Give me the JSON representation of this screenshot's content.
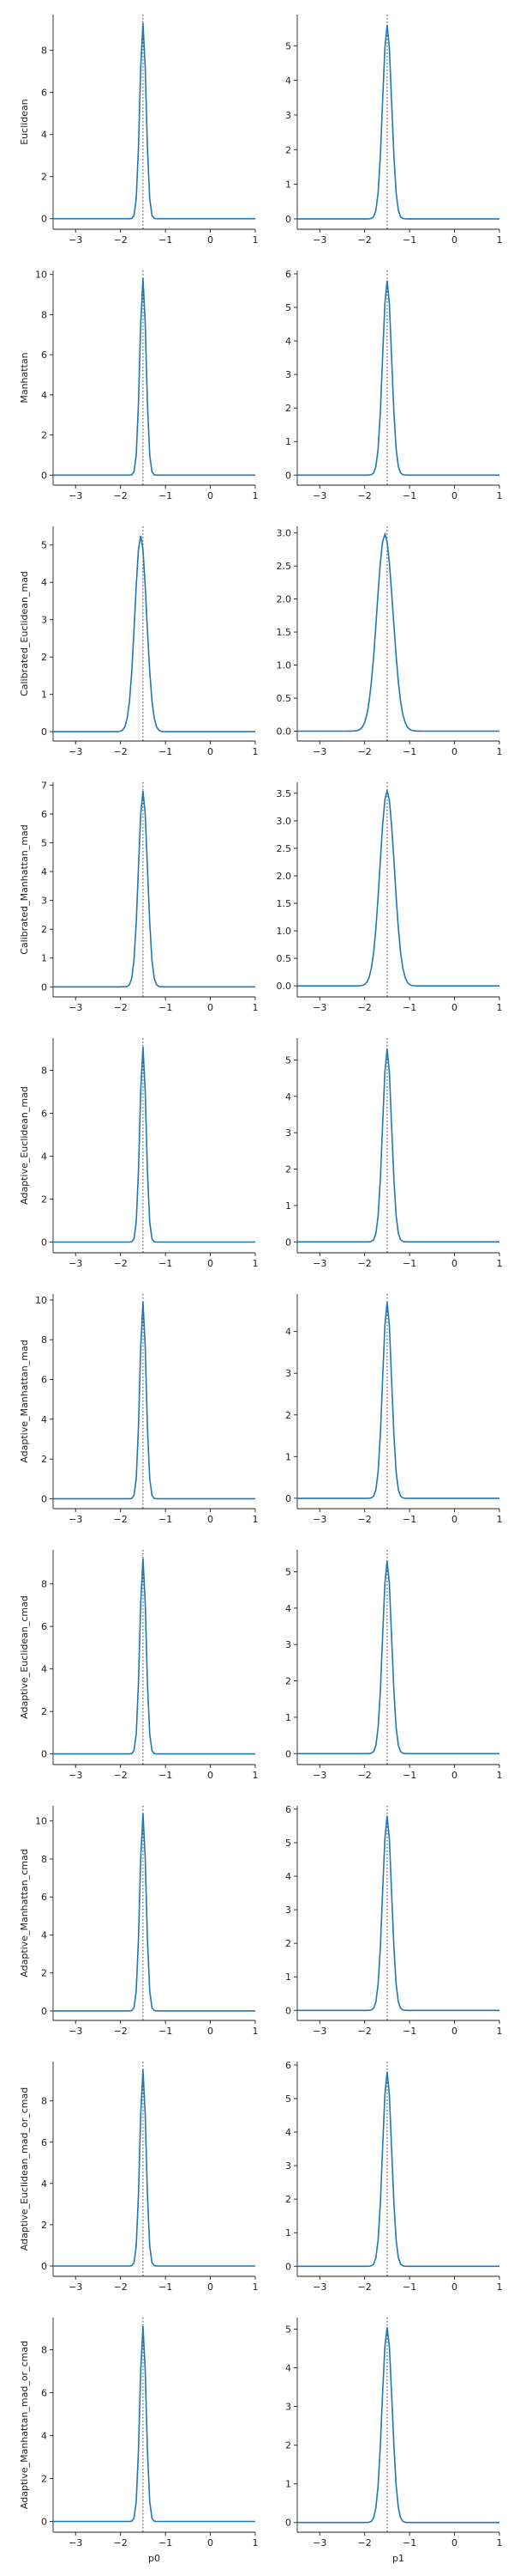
{
  "chart_data": {
    "type": "line",
    "layout": "grid",
    "rows": 10,
    "cols": 2,
    "column_xlabels": [
      "p0",
      "p1"
    ],
    "row_ylabels": [
      "Euclidean",
      "Manhattan",
      "Calibrated_Euclidean_mad",
      "Calibrated_Manhattan_mad",
      "Adaptive_Euclidean_mad",
      "Adaptive_Manhattan_mad",
      "Adaptive_Euclidean_cmad",
      "Adaptive_Manhattan_cmad",
      "Adaptive_Euclidean_mad_or_cmad",
      "Adaptive_Manhattan_mad_or_cmad"
    ],
    "xlim": [
      -3.5,
      1.0
    ],
    "xticks": [
      -3,
      -2,
      -1,
      0,
      1
    ],
    "reference_line_x": -1.5,
    "reference_line_style": "dotted",
    "line_color": "#1f77b4",
    "grid": false,
    "panels": [
      {
        "row": 0,
        "col": 0,
        "ylim": [
          -0.5,
          9.7
        ],
        "yticks": [
          0,
          2,
          4,
          6,
          8
        ],
        "peak_x": -1.5,
        "peak_y": 9.3,
        "width": 0.07
      },
      {
        "row": 0,
        "col": 1,
        "ylim": [
          -0.3,
          5.9
        ],
        "yticks": [
          0,
          1,
          2,
          3,
          4,
          5
        ],
        "peak_x": -1.5,
        "peak_y": 5.6,
        "width": 0.1
      },
      {
        "row": 1,
        "col": 0,
        "ylim": [
          -0.5,
          10.2
        ],
        "yticks": [
          0,
          2,
          4,
          6,
          8,
          10
        ],
        "peak_x": -1.5,
        "peak_y": 9.8,
        "width": 0.07
      },
      {
        "row": 1,
        "col": 1,
        "ylim": [
          -0.3,
          6.1
        ],
        "yticks": [
          0,
          1,
          2,
          3,
          4,
          5,
          6
        ],
        "peak_x": -1.5,
        "peak_y": 5.8,
        "width": 0.1
      },
      {
        "row": 2,
        "col": 0,
        "ylim": [
          -0.25,
          5.5
        ],
        "yticks": [
          0,
          1,
          2,
          3,
          4,
          5
        ],
        "peak_x": -1.55,
        "peak_y": 5.25,
        "width": 0.13
      },
      {
        "row": 2,
        "col": 1,
        "ylim": [
          -0.15,
          3.1
        ],
        "yticks": [
          0.0,
          0.5,
          1.0,
          1.5,
          2.0,
          2.5,
          3.0
        ],
        "peak_x": -1.55,
        "peak_y": 2.98,
        "width": 0.18
      },
      {
        "row": 3,
        "col": 0,
        "ylim": [
          -0.35,
          7.1
        ],
        "yticks": [
          0,
          1,
          2,
          3,
          4,
          5,
          6,
          7
        ],
        "peak_x": -1.5,
        "peak_y": 6.8,
        "width": 0.1
      },
      {
        "row": 3,
        "col": 1,
        "ylim": [
          -0.2,
          3.7
        ],
        "yticks": [
          0.0,
          0.5,
          1.0,
          1.5,
          2.0,
          2.5,
          3.0,
          3.5
        ],
        "peak_x": -1.5,
        "peak_y": 3.55,
        "width": 0.16
      },
      {
        "row": 4,
        "col": 0,
        "ylim": [
          -0.5,
          9.5
        ],
        "yticks": [
          0,
          2,
          4,
          6,
          8
        ],
        "peak_x": -1.5,
        "peak_y": 9.1,
        "width": 0.07
      },
      {
        "row": 4,
        "col": 1,
        "ylim": [
          -0.3,
          5.6
        ],
        "yticks": [
          0,
          1,
          2,
          3,
          4,
          5
        ],
        "peak_x": -1.5,
        "peak_y": 5.3,
        "width": 0.1
      },
      {
        "row": 5,
        "col": 0,
        "ylim": [
          -0.5,
          10.3
        ],
        "yticks": [
          0,
          2,
          4,
          6,
          8,
          10
        ],
        "peak_x": -1.5,
        "peak_y": 9.9,
        "width": 0.07
      },
      {
        "row": 5,
        "col": 1,
        "ylim": [
          -0.25,
          4.9
        ],
        "yticks": [
          0,
          1,
          2,
          3,
          4
        ],
        "peak_x": -1.5,
        "peak_y": 4.7,
        "width": 0.1
      },
      {
        "row": 6,
        "col": 0,
        "ylim": [
          -0.5,
          9.6
        ],
        "yticks": [
          0,
          2,
          4,
          6,
          8
        ],
        "peak_x": -1.5,
        "peak_y": 9.2,
        "width": 0.07
      },
      {
        "row": 6,
        "col": 1,
        "ylim": [
          -0.3,
          5.6
        ],
        "yticks": [
          0,
          1,
          2,
          3,
          4,
          5
        ],
        "peak_x": -1.5,
        "peak_y": 5.3,
        "width": 0.1
      },
      {
        "row": 7,
        "col": 0,
        "ylim": [
          -0.5,
          10.8
        ],
        "yticks": [
          0,
          2,
          4,
          6,
          8,
          10
        ],
        "peak_x": -1.5,
        "peak_y": 10.4,
        "width": 0.07
      },
      {
        "row": 7,
        "col": 1,
        "ylim": [
          -0.3,
          6.1
        ],
        "yticks": [
          0,
          1,
          2,
          3,
          4,
          5,
          6
        ],
        "peak_x": -1.5,
        "peak_y": 5.8,
        "width": 0.1
      },
      {
        "row": 8,
        "col": 0,
        "ylim": [
          -0.5,
          9.9
        ],
        "yticks": [
          0,
          2,
          4,
          6,
          8
        ],
        "peak_x": -1.5,
        "peak_y": 9.5,
        "width": 0.07
      },
      {
        "row": 8,
        "col": 1,
        "ylim": [
          -0.3,
          6.1
        ],
        "yticks": [
          0,
          1,
          2,
          3,
          4,
          5,
          6
        ],
        "peak_x": -1.5,
        "peak_y": 5.8,
        "width": 0.1
      },
      {
        "row": 9,
        "col": 0,
        "ylim": [
          -0.5,
          9.5
        ],
        "yticks": [
          0,
          2,
          4,
          6,
          8
        ],
        "peak_x": -1.5,
        "peak_y": 9.1,
        "width": 0.07
      },
      {
        "row": 9,
        "col": 1,
        "ylim": [
          -0.25,
          5.3
        ],
        "yticks": [
          0,
          1,
          2,
          3,
          4,
          5
        ],
        "peak_x": -1.5,
        "peak_y": 5.05,
        "width": 0.11
      }
    ]
  }
}
